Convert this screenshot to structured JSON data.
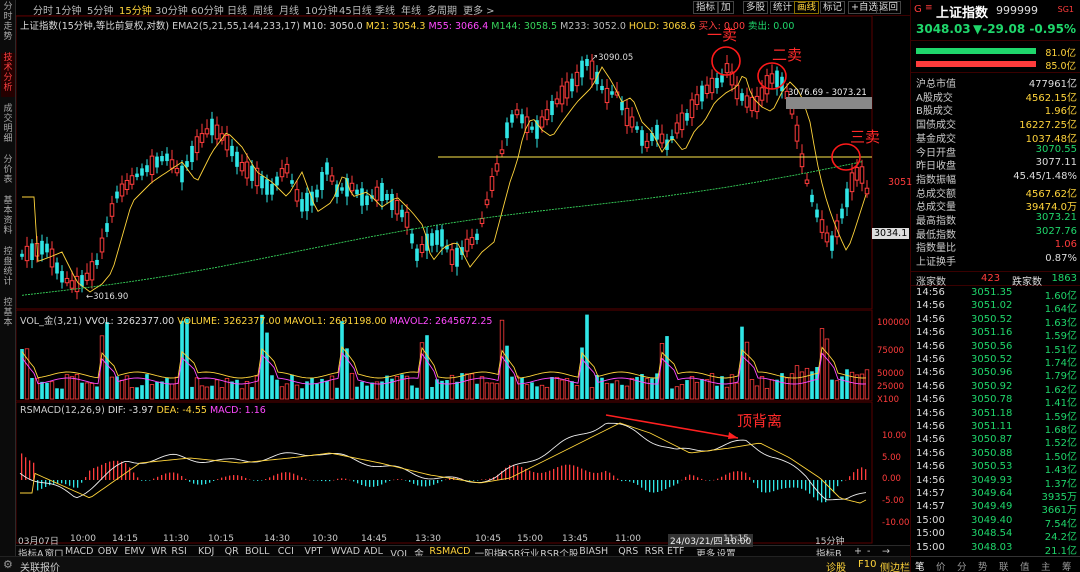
{
  "left_tabs": [
    "分时走势",
    "技术分析",
    "成交明细",
    "分价表",
    "基本资料",
    "控盘统计",
    "控基本"
  ],
  "periods": [
    "分时",
    "1分钟",
    "5分钟",
    "15分钟",
    "30分钟",
    "60分钟",
    "日线",
    "周线",
    "月线",
    "10分钟",
    "45日线",
    "季线",
    "年线",
    "多周期",
    "更多 >"
  ],
  "active_period": "15分钟",
  "toolbar": [
    "指标",
    "加",
    "多股",
    "统计",
    "画线",
    "标记",
    "+自选",
    "返回"
  ],
  "active_tool": "画线",
  "index_title": "上证指数(15分钟,等比前复权,对数)",
  "ma_legend": [
    {
      "text": "EMA2(5,21,55,144,233,17)",
      "color": "#cccccc"
    },
    {
      "text": "M10: 3050.0",
      "color": "#dddddd"
    },
    {
      "text": "M21: 3054.3",
      "color": "#ffd43b"
    },
    {
      "text": "M55: 3066.4",
      "color": "#ff49ff"
    },
    {
      "text": "M144: 3058.5",
      "color": "#37d45b"
    },
    {
      "text": "M233: 3052.0",
      "color": "#bbbbbb"
    },
    {
      "text": "HOLD: 3068.6",
      "color": "#ffd43b"
    },
    {
      "text": "买入: 0.00",
      "color": "#ff4040"
    },
    {
      "text": "卖出: 0.00",
      "color": "#1fd66b"
    }
  ],
  "price_annotations": {
    "high": "3090.05",
    "low": "3016.90",
    "range": "3076.69 - 3073.21",
    "right_price": "3051",
    "right_box": "3034.1"
  },
  "sell_labels": [
    "一卖",
    "二卖",
    "三卖"
  ],
  "divergence_label": "顶背离",
  "vol_legend": [
    {
      "text": "VOL_金(3,21)",
      "color": "#cccccc"
    },
    {
      "text": "VVOL: 3262377.00",
      "color": "#dddddd"
    },
    {
      "text": "VOLUME: 3262377.00",
      "color": "#ffd43b"
    },
    {
      "text": "MAVOL1: 2691198.00",
      "color": "#ffd43b"
    },
    {
      "text": "MAVOL2: 2645672.25",
      "color": "#ff49ff"
    }
  ],
  "vol_axis": [
    "100000",
    "75000",
    "50000",
    "25000",
    "X100"
  ],
  "macd_legend": [
    {
      "text": "RSMACD(12,26,9)",
      "color": "#cccccc"
    },
    {
      "text": "DIF: -3.97",
      "color": "#dddddd"
    },
    {
      "text": "DEA: -4.55",
      "color": "#ffd43b"
    },
    {
      "text": "MACD: 1.16",
      "color": "#ff49ff"
    }
  ],
  "macd_axis": [
    "10.00",
    "5.00",
    "0.00",
    "-5.00",
    "-10.00"
  ],
  "time_axis": [
    "03月07日",
    "10:00",
    "14:15",
    "11:30",
    "10:15",
    "14:30",
    "10:30",
    "14:45",
    "13:30",
    "10:45",
    "15:00",
    "13:45",
    "11:00",
    "24/03/21/四 10:00",
    "11:15",
    "15分钟"
  ],
  "indicators": [
    "指标A",
    "窗口",
    "MACD",
    "OBV",
    "EMV",
    "WR",
    "RSI",
    "KDJ",
    "QR",
    "BOLL",
    "CCI",
    "VPT",
    "WVAD",
    "ADL",
    "VOL_金",
    "RSMACD",
    "一阳指",
    "RSR行业",
    "RSR个股",
    "BIASH",
    "QRS",
    "RSR ETF",
    "更多",
    "设置"
  ],
  "active_indicator": "RSMACD",
  "ind_right": [
    "指标B",
    "+",
    "-",
    "→"
  ],
  "status": {
    "left": "关联报价",
    "mid": "诊股",
    "f10": "F10",
    "right": "侧边栏"
  },
  "quote": {
    "name": "上证指数",
    "code": "999999",
    "tag": "SG1",
    "price": "3048.03",
    "change": "▼-29.08",
    "pct": "-0.95%"
  },
  "bars": [
    {
      "pct": "81.0亿"
    },
    {
      "pct": "85.0亿"
    }
  ],
  "stats": [
    {
      "label": "沪总市值",
      "value": "477961亿",
      "color": "white"
    },
    {
      "label": "A股成交",
      "value": "4562.15亿",
      "color": "yellow"
    },
    {
      "label": "B股成交",
      "value": "1.96亿",
      "color": "yellow"
    },
    {
      "label": "国债成交",
      "value": "16227.25亿",
      "color": "yellow"
    },
    {
      "label": "基金成交",
      "value": "1037.48亿",
      "color": "yellow"
    },
    {
      "label": "今日开盘",
      "value": "3070.55",
      "color": "green"
    },
    {
      "label": "昨日收盘",
      "value": "3077.11",
      "color": "white"
    },
    {
      "label": "指数振幅",
      "value": "45.45/1.48%",
      "color": "white"
    },
    {
      "label": "总成交额",
      "value": "4567.62亿",
      "color": "yellow"
    },
    {
      "label": "总成交量",
      "value": "39474.0万",
      "color": "yellow"
    },
    {
      "label": "最高指数",
      "value": "3073.21",
      "color": "green"
    },
    {
      "label": "最低指数",
      "value": "3027.76",
      "color": "green"
    },
    {
      "label": "指数量比",
      "value": "1.06",
      "color": "red"
    },
    {
      "label": "上证换手",
      "value": "0.87%",
      "color": "white"
    }
  ],
  "updown": {
    "up_label": "涨家数",
    "up": "423",
    "down_label": "跌家数",
    "down": "1863"
  },
  "ticks": [
    [
      "14:56",
      "3051.35",
      "1.60亿"
    ],
    [
      "14:56",
      "3051.02",
      "1.64亿"
    ],
    [
      "14:56",
      "3050.52",
      "1.63亿"
    ],
    [
      "14:56",
      "3051.16",
      "1.59亿"
    ],
    [
      "14:56",
      "3050.56",
      "1.51亿"
    ],
    [
      "14:56",
      "3050.52",
      "1.74亿"
    ],
    [
      "14:56",
      "3050.96",
      "1.79亿"
    ],
    [
      "14:56",
      "3050.92",
      "1.62亿"
    ],
    [
      "14:56",
      "3050.78",
      "1.41亿"
    ],
    [
      "14:56",
      "3051.18",
      "1.59亿"
    ],
    [
      "14:56",
      "3051.11",
      "1.68亿"
    ],
    [
      "14:56",
      "3050.87",
      "1.52亿"
    ],
    [
      "14:56",
      "3050.88",
      "1.50亿"
    ],
    [
      "14:56",
      "3050.53",
      "1.43亿"
    ],
    [
      "14:56",
      "3049.93",
      "1.37亿"
    ],
    [
      "14:57",
      "3049.64",
      "3935万"
    ],
    [
      "14:57",
      "3049.49",
      "3661万"
    ],
    [
      "15:00",
      "3049.40",
      "7.54亿"
    ],
    [
      "15:00",
      "3048.54",
      "24.2亿"
    ],
    [
      "15:00",
      "3048.03",
      "21.1亿"
    ]
  ],
  "bottom_tabs": [
    "笔",
    "价",
    "分",
    "势",
    "联",
    "值",
    "主",
    "筹"
  ],
  "colors": {
    "up": "#ff3c3c",
    "down": "#2fe6e6",
    "bg": "#000000",
    "frame": "#5a0000",
    "ma21": "#ffd43b",
    "ma233": "#37d45b"
  }
}
